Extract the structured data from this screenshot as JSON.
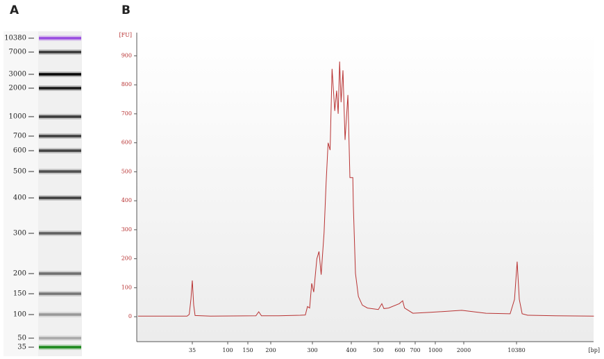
{
  "chart_data": [
    {
      "type": "gel",
      "title": "A",
      "sizes": [
        10380,
        7000,
        3000,
        2000,
        1000,
        700,
        600,
        500,
        400,
        300,
        200,
        150,
        100,
        50,
        35
      ],
      "colors": [
        "#9a4fe0",
        "#3a3a3a",
        "#0a0a0a",
        "#1a1a1a",
        "#3c3c3c",
        "#404040",
        "#454545",
        "#505050",
        "#404040",
        "#606060",
        "#707070",
        "#777777",
        "#999999",
        "#aaaaaa",
        "#1f8a1f"
      ]
    },
    {
      "type": "line",
      "title": "B",
      "y_label": "[FU]",
      "x_label": "[bp]",
      "color": "#b83232",
      "x": [
        7,
        30,
        32,
        33.6,
        35,
        36.5,
        38,
        60,
        166,
        172,
        178,
        216,
        266,
        280,
        286,
        292,
        298,
        303,
        310,
        315,
        320,
        327,
        332,
        337,
        342,
        347,
        354,
        359,
        363,
        367,
        371,
        376,
        382,
        390,
        396,
        405,
        407,
        414,
        424,
        438,
        457,
        500,
        515,
        524,
        545,
        597,
        617,
        629,
        684,
        919,
        1900,
        3997,
        8500,
        9750,
        10590,
        11330,
        12370,
        14700,
        35000,
        116000
      ],
      "values": [
        2,
        2,
        8,
        60,
        125,
        40,
        4,
        2,
        3,
        17,
        3,
        3,
        5,
        6,
        35,
        30,
        115,
        85,
        200,
        225,
        145,
        290,
        460,
        600,
        575,
        855,
        710,
        780,
        700,
        880,
        740,
        850,
        610,
        765,
        480,
        480,
        380,
        150,
        70,
        40,
        30,
        25,
        45,
        28,
        30,
        45,
        55,
        30,
        12,
        15,
        22,
        12,
        10,
        60,
        190,
        60,
        10,
        5,
        3,
        2
      ],
      "xlim": [
        7,
        116000
      ],
      "ylim": [
        -86,
        980
      ],
      "xticks": [
        35,
        100,
        150,
        200,
        300,
        400,
        500,
        600,
        700,
        1000,
        2000,
        10380
      ],
      "yticks": [
        0,
        100,
        200,
        300,
        400,
        500,
        600,
        700,
        800,
        900
      ]
    }
  ]
}
